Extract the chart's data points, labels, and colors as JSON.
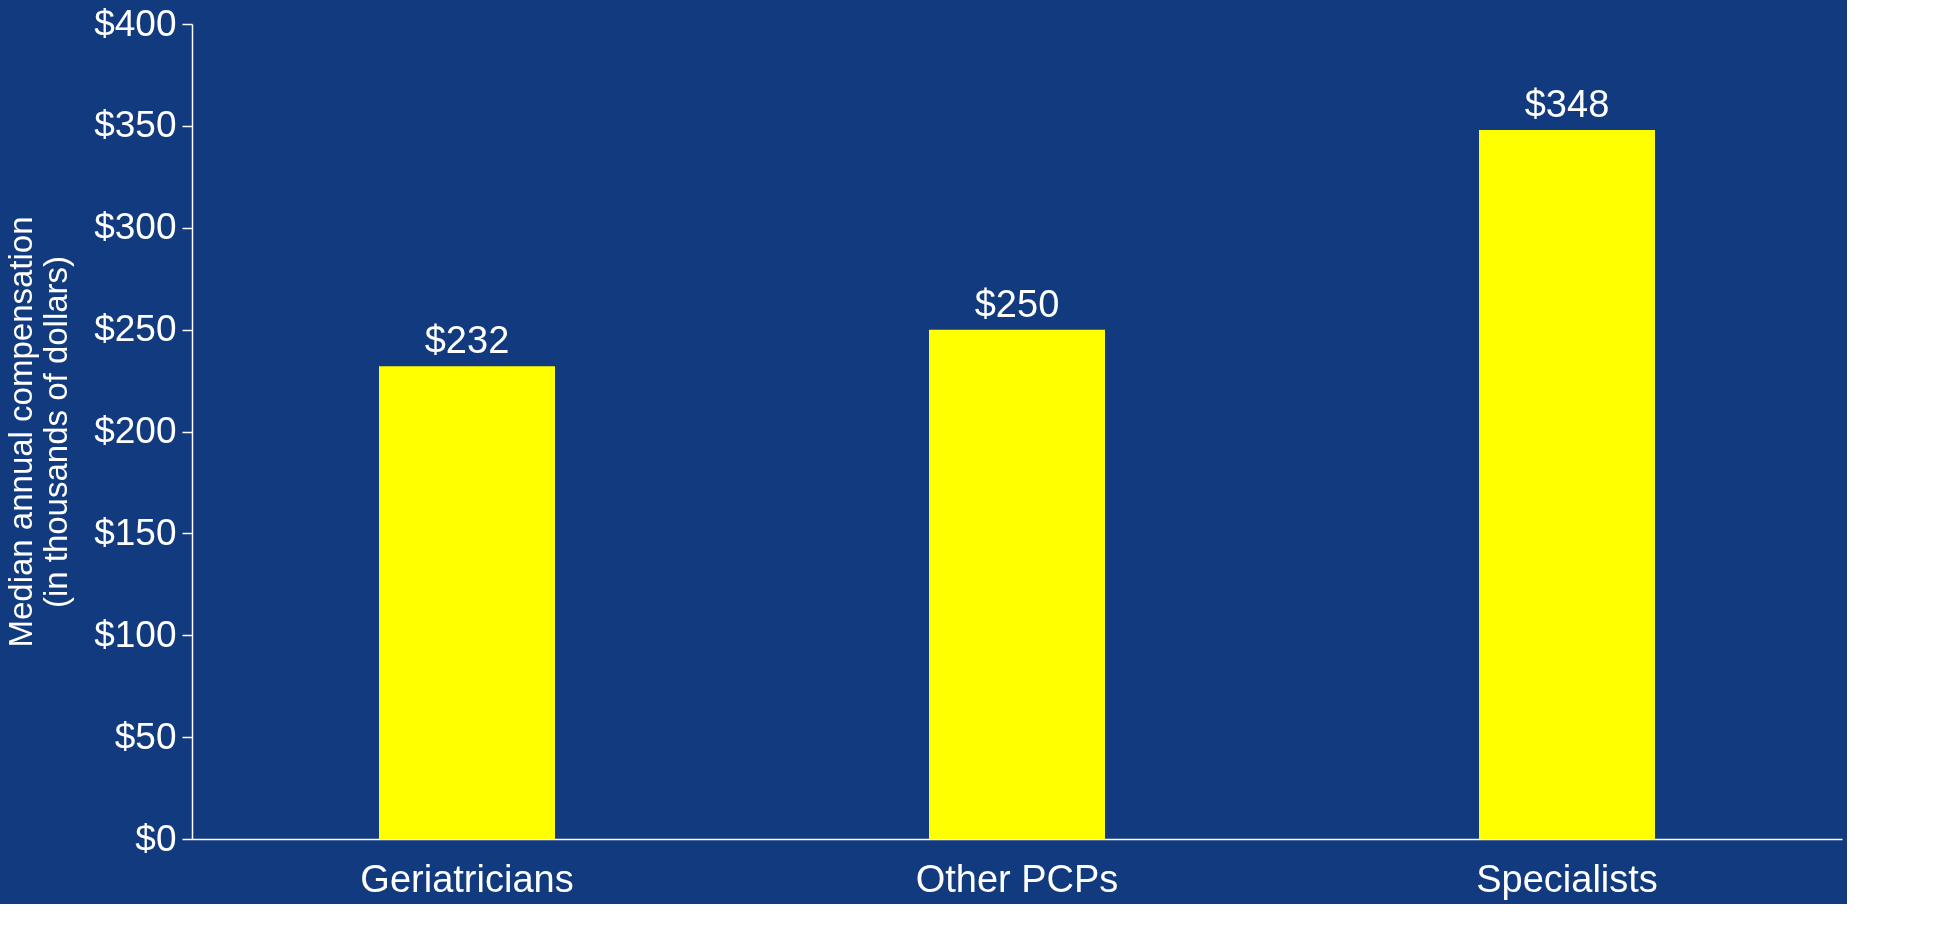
{
  "chart_data": {
    "type": "bar",
    "ylabel": "Median annual compensation\n(in thousands of dollars)",
    "categories": [
      "Geriatricians",
      "Other PCPs",
      "Specialists"
    ],
    "values": [
      232,
      250,
      348
    ],
    "value_labels": [
      "$232",
      "$250",
      "$348"
    ],
    "color": "#ffff00",
    "ylim": [
      0,
      400
    ],
    "yticks": [
      {
        "value": 0,
        "label": "$0"
      },
      {
        "value": 50,
        "label": "$50"
      },
      {
        "value": 100,
        "label": "$100"
      },
      {
        "value": 150,
        "label": "$150"
      },
      {
        "value": 200,
        "label": "$200"
      },
      {
        "value": 250,
        "label": "$250"
      },
      {
        "value": 300,
        "label": "$300"
      },
      {
        "value": 350,
        "label": "$350"
      },
      {
        "value": 400,
        "label": "$400"
      }
    ],
    "grid": false
  }
}
